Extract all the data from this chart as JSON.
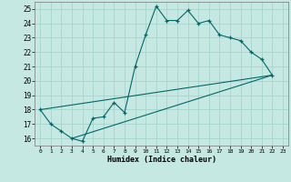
{
  "xlabel": "Humidex (Indice chaleur)",
  "bg_color": "#c5e8e2",
  "line_color": "#006868",
  "grid_color": "#a8d4cc",
  "xlim": [
    -0.5,
    23.5
  ],
  "ylim": [
    15.5,
    25.5
  ],
  "xticks": [
    0,
    1,
    2,
    3,
    4,
    5,
    6,
    7,
    8,
    9,
    10,
    11,
    12,
    13,
    14,
    15,
    16,
    17,
    18,
    19,
    20,
    21,
    22,
    23
  ],
  "yticks": [
    16,
    17,
    18,
    19,
    20,
    21,
    22,
    23,
    24,
    25
  ],
  "curve1_x": [
    0,
    1,
    2,
    3,
    4,
    5,
    6,
    7,
    8,
    9,
    10,
    11,
    12,
    13,
    14,
    15,
    16,
    17,
    18,
    19,
    20,
    21,
    22
  ],
  "curve1_y": [
    18.0,
    17.0,
    16.5,
    16.0,
    15.8,
    17.4,
    17.5,
    18.5,
    17.8,
    21.0,
    23.2,
    25.2,
    24.2,
    24.2,
    24.9,
    24.0,
    24.2,
    23.2,
    23.0,
    22.8,
    22.0,
    21.5,
    20.4
  ],
  "line2_x": [
    0,
    22
  ],
  "line2_y": [
    18.0,
    20.4
  ],
  "line3_x": [
    3,
    22
  ],
  "line3_y": [
    16.0,
    20.4
  ]
}
